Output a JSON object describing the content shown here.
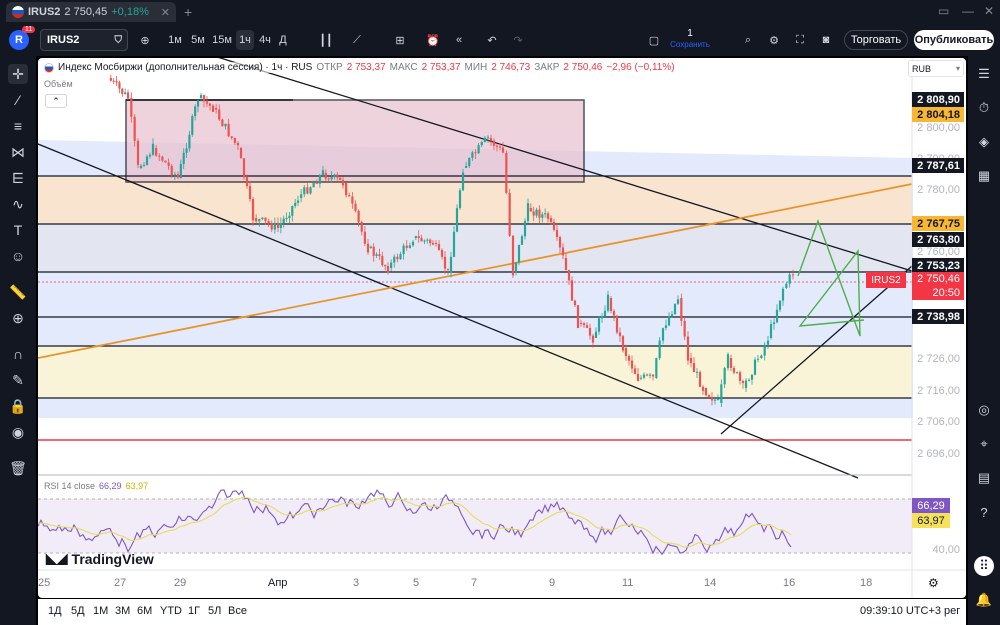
{
  "tab": {
    "title": "IRUS2",
    "price": "2 750,45",
    "change": "+0,18%"
  },
  "toolbar": {
    "avatar_letter": "R",
    "notif_count": "11",
    "symbol": "IRUS2",
    "intervals": [
      "1м",
      "5м",
      "15м",
      "1ч",
      "4ч",
      "Д"
    ],
    "active_interval": "1ч",
    "save_count": "1",
    "save_label": "Сохранить",
    "trade_label": "Торговать",
    "publish_label": "Опубликовать"
  },
  "legend": {
    "title": "Индекс Мосбиржи (дополнительная сессия) · 1ч · RUS",
    "open_label": "ОТКР",
    "open": "2 753,37",
    "high_label": "МАКС",
    "high": "2 753,37",
    "low_label": "МИН",
    "low": "2 746,73",
    "close_label": "ЗАКР",
    "close": "2 750,46",
    "change": "−2,96 (−0,11%)",
    "volume_label": "Объём"
  },
  "currency": "RUB",
  "price_axis": {
    "ticks": [
      "2 800,00",
      "2 790,00",
      "2 780,00",
      "2 760,00",
      "2 726,00",
      "2 716,00",
      "2 706,00",
      "2 696,00"
    ],
    "labels": {
      "l1": "2 808,90",
      "l2": "2 804,18",
      "l3": "2 787,61",
      "l4": "2 767,75",
      "l5": "2 763,80",
      "l6": "2 753,23",
      "l7": "2 738,98"
    },
    "current_symbol": "IRUS2",
    "current_price": "2 750,46",
    "countdown": "20:50"
  },
  "rsi": {
    "label": "RSI 14 close",
    "value": "66,29",
    "ma": "63,97",
    "axis_tick": "40,00"
  },
  "brand": "TradingView",
  "time_axis": [
    "25",
    "27",
    "29",
    "Апр",
    "3",
    "5",
    "7",
    "9",
    "11",
    "14",
    "16",
    "18"
  ],
  "bottom": {
    "ranges": [
      "1Д",
      "5Д",
      "1М",
      "3М",
      "6М",
      "YTD",
      "1Г",
      "5Л",
      "Все"
    ],
    "time": "09:39:10 UTC+3",
    "mode": "рег"
  },
  "colors": {
    "bull": "#26a69a",
    "bear": "#ef5350",
    "rsi_line": "#7e57c2",
    "rsi_ma": "#e6dc5a",
    "trend_orange": "#e8942a",
    "forecast": "#4caf50"
  }
}
